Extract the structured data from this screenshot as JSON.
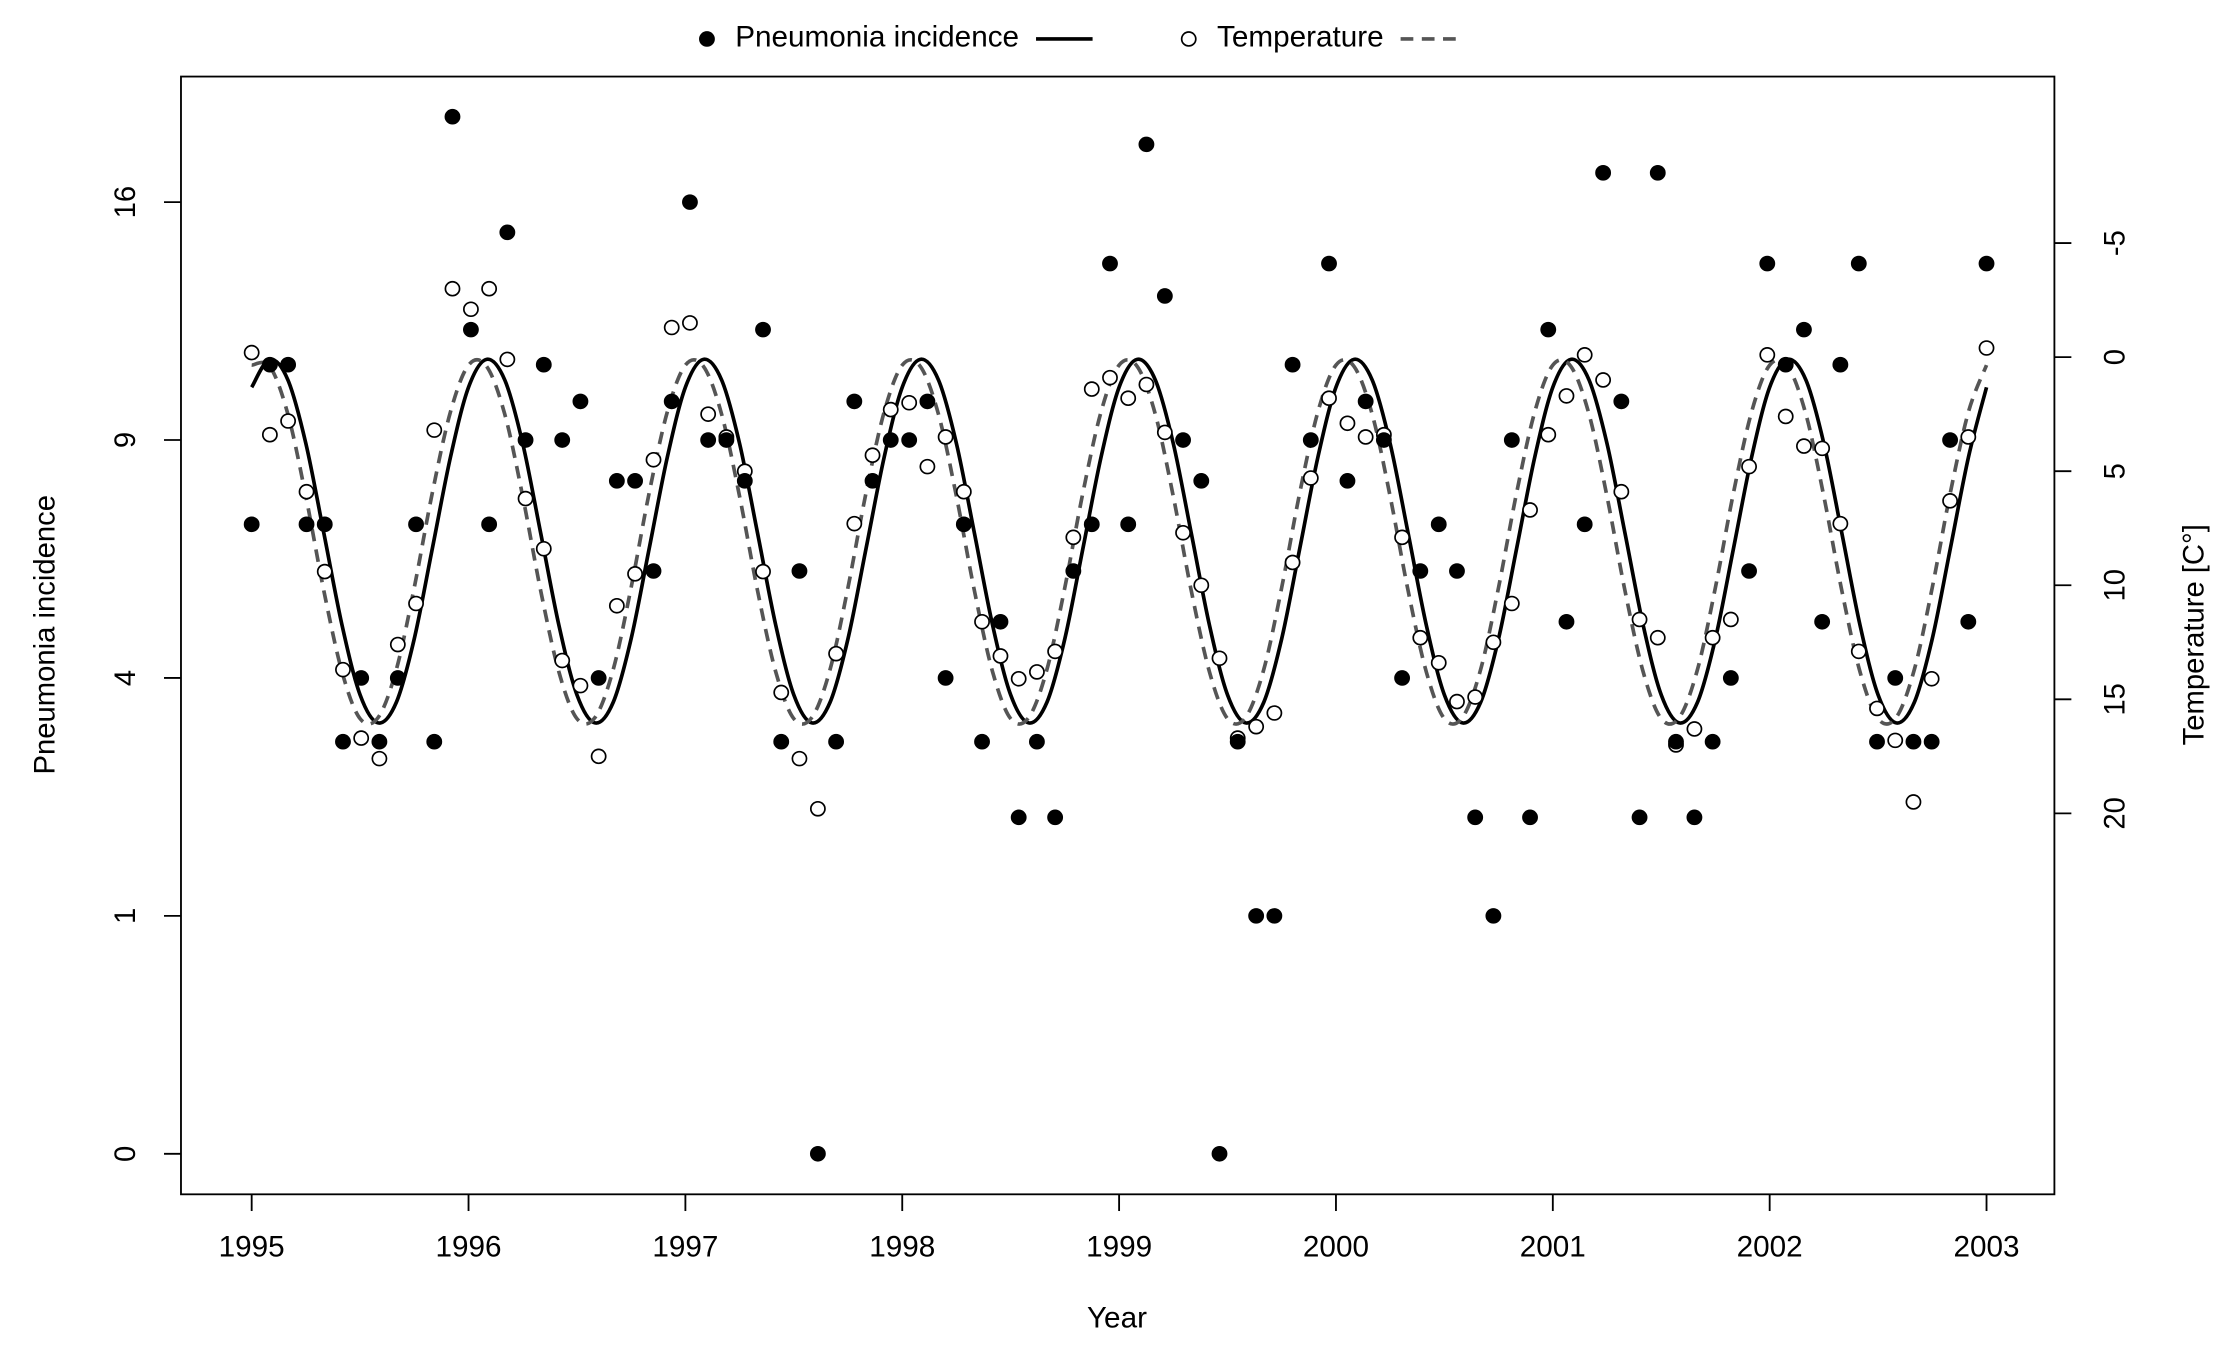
{
  "chart_data": {
    "type": "scatter",
    "xlabel": "Year",
    "ylabel": "Pneumonia incidence",
    "y2label": "Temperature [C°]",
    "legend": "top",
    "xlim": [
      1994.674,
      2003.313
    ],
    "xticks": [
      1995,
      1996,
      1997,
      1998,
      1999,
      2000,
      2001,
      2002,
      2003
    ],
    "yscale": "sqrt",
    "ylim": [
      -0.029,
      20.5
    ],
    "yticks": [
      0,
      1,
      4,
      9,
      16
    ],
    "y2lim": [
      36.7,
      -12.3
    ],
    "y2ticks": [
      -5,
      0,
      5,
      10,
      15,
      20
    ],
    "fit_x": [
      1995,
      1995.083,
      1995.167,
      1995.25,
      1995.333,
      1995.417,
      1995.5,
      1995.583,
      1995.667,
      1995.75,
      1995.833,
      1995.917,
      1996,
      1996.083,
      1996.167,
      1996.25,
      1996.333,
      1996.417,
      1996.5,
      1996.583,
      1996.667,
      1996.75,
      1996.833,
      1996.917,
      1997,
      1997.083,
      1997.167,
      1997.25,
      1997.333,
      1997.417,
      1997.5,
      1997.583,
      1997.667,
      1997.75,
      1997.833,
      1997.917,
      1998,
      1998.083,
      1998.167,
      1998.25,
      1998.333,
      1998.417,
      1998.5,
      1998.583,
      1998.667,
      1998.75,
      1998.833,
      1998.917,
      1999,
      1999.083,
      1999.167,
      1999.25,
      1999.333,
      1999.417,
      1999.5,
      1999.583,
      1999.667,
      1999.75,
      1999.833,
      1999.917,
      2000,
      2000.083,
      2000.167,
      2000.25,
      2000.333,
      2000.417,
      2000.5,
      2000.583,
      2000.667,
      2000.75,
      2000.833,
      2000.917,
      2001,
      2001.083,
      2001.167,
      2001.25,
      2001.333,
      2001.417,
      2001.5,
      2001.583,
      2001.667,
      2001.75,
      2001.833,
      2001.917,
      2002,
      2002.083,
      2002.167,
      2002.25,
      2002.333,
      2002.417,
      2002.5,
      2002.583,
      2002.667,
      2002.75,
      2002.833,
      2002.917,
      2003
    ],
    "series": [
      {
        "name": "Pneumonia incidence",
        "marker": "filled",
        "color": "#000000",
        "fit_dash": false,
        "fit_color": "#000000",
        "x": [
          1995,
          1995.084,
          1995.168,
          1995.253,
          1995.337,
          1995.421,
          1995.505,
          1995.589,
          1995.674,
          1995.758,
          1995.842,
          1995.926,
          1996.011,
          1996.095,
          1996.179,
          1996.263,
          1996.347,
          1996.432,
          1996.516,
          1996.6,
          1996.684,
          1996.768,
          1996.853,
          1996.937,
          1997.021,
          1997.105,
          1997.189,
          1997.274,
          1997.358,
          1997.442,
          1997.526,
          1997.611,
          1997.695,
          1997.779,
          1997.863,
          1997.947,
          1998.032,
          1998.116,
          1998.2,
          1998.284,
          1998.368,
          1998.453,
          1998.537,
          1998.621,
          1998.705,
          1998.789,
          1998.874,
          1998.958,
          1999.042,
          1999.126,
          1999.211,
          1999.295,
          1999.379,
          1999.463,
          1999.547,
          1999.632,
          1999.716,
          1999.8,
          1999.884,
          1999.968,
          2000.053,
          2000.137,
          2000.221,
          2000.305,
          2000.389,
          2000.474,
          2000.558,
          2000.642,
          2000.726,
          2000.811,
          2000.895,
          2000.979,
          2001.063,
          2001.147,
          2001.232,
          2001.316,
          2001.4,
          2001.484,
          2001.568,
          2001.653,
          2001.737,
          2001.821,
          2001.905,
          2001.989,
          2002.074,
          2002.158,
          2002.242,
          2002.326,
          2002.411,
          2002.495,
          2002.579,
          2002.663,
          2002.747,
          2002.832,
          2002.916,
          2003
        ],
        "values": [
          7,
          11,
          11,
          7,
          7,
          3,
          4,
          3,
          4,
          7,
          3,
          19,
          12,
          7,
          15,
          9,
          11,
          9,
          10,
          4,
          8,
          8,
          6,
          10,
          16,
          9,
          9,
          8,
          12,
          3,
          6,
          0,
          3,
          10,
          8,
          9,
          9,
          10,
          4,
          7,
          3,
          5,
          2,
          3,
          2,
          6,
          7,
          14,
          7,
          18,
          13,
          9,
          8,
          0,
          3,
          1,
          1,
          11,
          9,
          14,
          8,
          10,
          9,
          4,
          6,
          7,
          6,
          2,
          1,
          9,
          2,
          12,
          5,
          7,
          17,
          10,
          2,
          17,
          3,
          2,
          3,
          4,
          6,
          14,
          11,
          12,
          5,
          11,
          14,
          3,
          4,
          3,
          3,
          9,
          5,
          14
        ],
        "fit_values": [
          10.38,
          11.15,
          10.58,
          8.91,
          6.8,
          4.93,
          3.72,
          3.28,
          3.6,
          4.69,
          6.47,
          8.58,
          10.38,
          11.15,
          10.58,
          8.91,
          6.8,
          4.93,
          3.72,
          3.28,
          3.6,
          4.69,
          6.47,
          8.58,
          10.38,
          11.15,
          10.58,
          8.91,
          6.8,
          4.93,
          3.72,
          3.28,
          3.6,
          4.69,
          6.47,
          8.58,
          10.38,
          11.15,
          10.58,
          8.91,
          6.8,
          4.93,
          3.72,
          3.28,
          3.6,
          4.69,
          6.47,
          8.58,
          10.38,
          11.15,
          10.58,
          8.91,
          6.8,
          4.93,
          3.72,
          3.28,
          3.6,
          4.69,
          6.47,
          8.58,
          10.38,
          11.15,
          10.58,
          8.91,
          6.8,
          4.93,
          3.72,
          3.28,
          3.6,
          4.69,
          6.47,
          8.58,
          10.38,
          11.15,
          10.58,
          8.91,
          6.8,
          4.93,
          3.72,
          3.28,
          3.6,
          4.69,
          6.47,
          8.58,
          10.38,
          11.15,
          10.58,
          8.91,
          6.8,
          4.93,
          3.72,
          3.28,
          3.6,
          4.69,
          6.47,
          8.58,
          10.38
        ]
      },
      {
        "name": "Temperature",
        "marker": "open",
        "color": "#000000",
        "axis": "y2",
        "fit_dash": true,
        "fit_color": "#555555",
        "x": [
          1995,
          1995.084,
          1995.168,
          1995.253,
          1995.337,
          1995.421,
          1995.505,
          1995.589,
          1995.674,
          1995.758,
          1995.842,
          1995.926,
          1996.011,
          1996.095,
          1996.179,
          1996.263,
          1996.347,
          1996.432,
          1996.516,
          1996.6,
          1996.684,
          1996.768,
          1996.853,
          1996.937,
          1997.021,
          1997.105,
          1997.189,
          1997.274,
          1997.358,
          1997.442,
          1997.526,
          1997.611,
          1997.695,
          1997.779,
          1997.863,
          1997.947,
          1998.032,
          1998.116,
          1998.2,
          1998.284,
          1998.368,
          1998.453,
          1998.537,
          1998.621,
          1998.705,
          1998.789,
          1998.874,
          1998.958,
          1999.042,
          1999.126,
          1999.211,
          1999.295,
          1999.379,
          1999.463,
          1999.547,
          1999.632,
          1999.716,
          1999.8,
          1999.884,
          1999.968,
          2000.053,
          2000.137,
          2000.221,
          2000.305,
          2000.389,
          2000.474,
          2000.558,
          2000.642,
          2000.726,
          2000.811,
          2000.895,
          2000.979,
          2001.063,
          2001.147,
          2001.232,
          2001.316,
          2001.4,
          2001.484,
          2001.568,
          2001.653,
          2001.737,
          2001.821,
          2001.905,
          2001.989,
          2002.074,
          2002.158,
          2002.242,
          2002.326,
          2002.411,
          2002.495,
          2002.579,
          2002.663,
          2002.747,
          2002.832,
          2002.916,
          2003
        ],
        "values": [
          -0.2,
          3.4,
          2.8,
          5.9,
          9.4,
          13.7,
          16.7,
          17.6,
          12.6,
          10.8,
          3.2,
          -3.0,
          -2.1,
          -3.0,
          0.1,
          6.2,
          8.4,
          13.3,
          14.4,
          17.5,
          10.9,
          9.5,
          4.5,
          -1.3,
          -1.5,
          2.5,
          3.5,
          5.0,
          9.4,
          14.7,
          17.6,
          19.8,
          13.0,
          7.3,
          4.3,
          2.3,
          2.0,
          4.8,
          3.5,
          5.9,
          11.6,
          13.1,
          14.1,
          13.8,
          12.9,
          7.9,
          1.4,
          0.9,
          1.8,
          1.2,
          3.3,
          7.7,
          10.0,
          13.2,
          16.7,
          16.2,
          15.6,
          9.0,
          5.3,
          1.8,
          2.9,
          3.5,
          3.4,
          7.9,
          12.3,
          13.4,
          15.1,
          14.9,
          12.5,
          10.8,
          6.7,
          3.4,
          1.7,
          -0.1,
          1.0,
          5.9,
          11.5,
          12.3,
          17.0,
          16.3,
          12.3,
          11.5,
          4.8,
          -0.1,
          2.6,
          3.9,
          4.0,
          7.3,
          12.9,
          15.4,
          16.8,
          19.5,
          14.1,
          6.3,
          3.5,
          -0.4
        ],
        "fit_values": [
          0.35,
          0.4,
          2.5,
          6.11,
          10.25,
          13.81,
          15.85,
          15.8,
          13.7,
          10.09,
          5.95,
          2.39,
          0.35,
          0.4,
          2.5,
          6.11,
          10.25,
          13.81,
          15.85,
          15.8,
          13.7,
          10.09,
          5.95,
          2.39,
          0.35,
          0.4,
          2.5,
          6.11,
          10.25,
          13.81,
          15.85,
          15.8,
          13.7,
          10.09,
          5.95,
          2.39,
          0.35,
          0.4,
          2.5,
          6.11,
          10.25,
          13.81,
          15.85,
          15.8,
          13.7,
          10.09,
          5.95,
          2.39,
          0.35,
          0.4,
          2.5,
          6.11,
          10.25,
          13.81,
          15.85,
          15.8,
          13.7,
          10.09,
          5.95,
          2.39,
          0.35,
          0.4,
          2.5,
          6.11,
          10.25,
          13.81,
          15.85,
          15.8,
          13.7,
          10.09,
          5.95,
          2.39,
          0.35,
          0.4,
          2.5,
          6.11,
          10.25,
          13.81,
          15.85,
          15.8,
          13.7,
          10.09,
          5.95,
          2.39,
          0.35,
          0.4,
          2.5,
          6.11,
          10.25,
          13.81,
          15.85,
          15.8,
          13.7,
          10.09,
          5.95,
          2.39,
          0.35
        ]
      }
    ]
  }
}
